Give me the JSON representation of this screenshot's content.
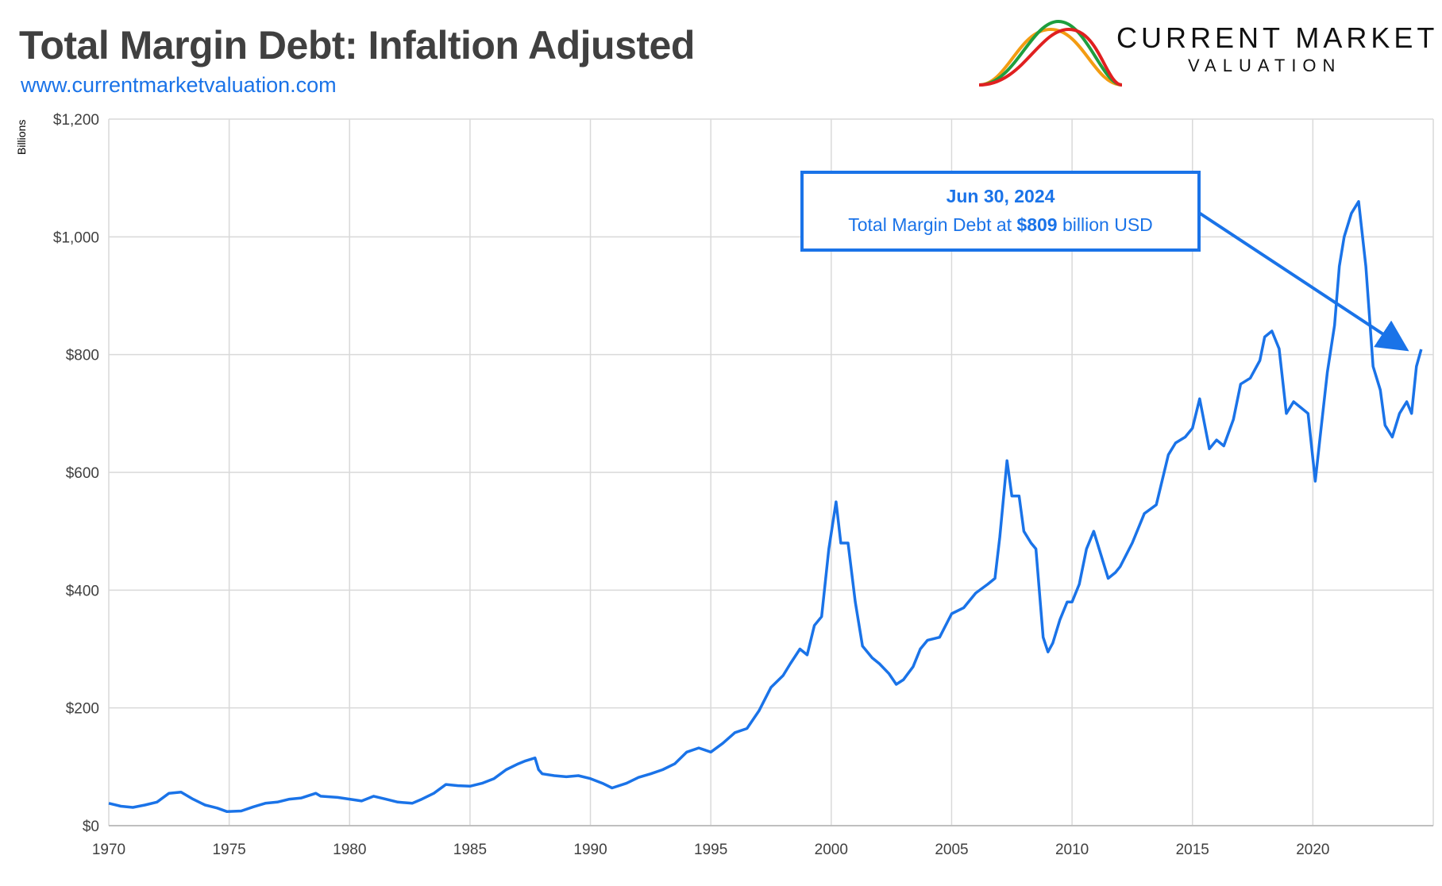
{
  "header": {
    "title": "Total Margin Debt: Infaltion Adjusted",
    "website": "www.currentmarketvaluation.com"
  },
  "logo": {
    "line1": "CURRENT MARKET",
    "line2": "VALUATION",
    "curve_colors": [
      "#f39c12",
      "#1e9e3e",
      "#e02020"
    ]
  },
  "colors": {
    "series": "#1a73e8",
    "grid": "#d9d9d9",
    "title": "#404040",
    "annotation": "#1a73e8"
  },
  "annotation": {
    "date": "Jun 30, 2024",
    "text_before": "Total Margin Debt at ",
    "value": "$809",
    "text_after": " billion USD",
    "point_x": 2024.5,
    "point_y": 809
  },
  "chart_data": {
    "type": "line",
    "title": "Total Margin Debt: Infaltion Adjusted",
    "ylabel": "Billions",
    "xlabel": "",
    "xlim": [
      1970,
      2025
    ],
    "ylim": [
      0,
      1200
    ],
    "grid": true,
    "x_ticks": [
      1970,
      1975,
      1980,
      1985,
      1990,
      1995,
      2000,
      2005,
      2010,
      2015,
      2020
    ],
    "x_tick_labels": [
      "1970",
      "1975",
      "1980",
      "1985",
      "1990",
      "1995",
      "2000",
      "2005",
      "2010",
      "2015",
      "2020"
    ],
    "y_ticks": [
      0,
      200,
      400,
      600,
      800,
      1000,
      1200
    ],
    "y_tick_labels": [
      "$0",
      "$200",
      "$400",
      "$600",
      "$800",
      "$1,000",
      "$1,200"
    ],
    "series": [
      {
        "x": [
          1970.0,
          1970.5,
          1971.0,
          1971.5,
          1972.0,
          1972.5,
          1973.0,
          1973.5,
          1974.0,
          1974.5,
          1974.9,
          1975.5,
          1976.0,
          1976.5,
          1977.0,
          1977.5,
          1978.0,
          1978.6,
          1978.8,
          1979.5,
          1980.0,
          1980.5,
          1981.0,
          1981.5,
          1982.0,
          1982.6,
          1983.0,
          1983.5,
          1984.0,
          1984.5,
          1985.0,
          1985.5,
          1986.0,
          1986.5,
          1987.0,
          1987.3,
          1987.7,
          1987.85,
          1988.0,
          1988.5,
          1989.0,
          1989.5,
          1990.0,
          1990.5,
          1990.9,
          1991.5,
          1992.0,
          1992.5,
          1993.0,
          1993.5,
          1994.0,
          1994.5,
          1995.0,
          1995.5,
          1996.0,
          1996.5,
          1997.0,
          1997.5,
          1998.0,
          1998.3,
          1998.7,
          1999.0,
          1999.3,
          1999.6,
          1999.9,
          2000.2,
          2000.4,
          2000.7,
          2001.0,
          2001.3,
          2001.7,
          2002.0,
          2002.4,
          2002.7,
          2003.0,
          2003.4,
          2003.7,
          2004.0,
          2004.5,
          2005.0,
          2005.5,
          2006.0,
          2006.5,
          2006.8,
          2007.0,
          2007.3,
          2007.5,
          2007.8,
          2008.0,
          2008.3,
          2008.5,
          2008.8,
          2009.0,
          2009.2,
          2009.5,
          2009.8,
          2010.0,
          2010.3,
          2010.6,
          2010.9,
          2011.2,
          2011.5,
          2011.8,
          2012.0,
          2012.5,
          2013.0,
          2013.5,
          2014.0,
          2014.3,
          2014.7,
          2015.0,
          2015.3,
          2015.7,
          2016.0,
          2016.3,
          2016.7,
          2017.0,
          2017.4,
          2017.8,
          2018.0,
          2018.3,
          2018.6,
          2018.9,
          2019.2,
          2019.5,
          2019.8,
          2020.1,
          2020.3,
          2020.6,
          2020.9,
          2021.1,
          2021.3,
          2021.6,
          2021.9,
          2022.2,
          2022.5,
          2022.8,
          2023.0,
          2023.3,
          2023.6,
          2023.9,
          2024.1,
          2024.3,
          2024.5
        ],
        "values": [
          38,
          33,
          31,
          35,
          40,
          55,
          57,
          45,
          35,
          30,
          24,
          25,
          32,
          38,
          40,
          45,
          47,
          55,
          50,
          48,
          45,
          42,
          50,
          45,
          40,
          38,
          45,
          55,
          70,
          68,
          67,
          72,
          80,
          95,
          105,
          110,
          115,
          95,
          88,
          85,
          83,
          85,
          80,
          72,
          64,
          72,
          82,
          88,
          95,
          105,
          125,
          132,
          125,
          140,
          158,
          165,
          195,
          235,
          255,
          275,
          300,
          290,
          340,
          355,
          470,
          550,
          480,
          480,
          380,
          305,
          285,
          275,
          258,
          240,
          248,
          270,
          300,
          315,
          320,
          360,
          370,
          395,
          410,
          420,
          490,
          620,
          560,
          560,
          500,
          480,
          470,
          320,
          295,
          310,
          350,
          380,
          380,
          410,
          470,
          500,
          460,
          420,
          430,
          440,
          480,
          530,
          545,
          630,
          650,
          660,
          675,
          725,
          640,
          655,
          645,
          690,
          750,
          760,
          790,
          830,
          840,
          810,
          700,
          720,
          710,
          700,
          585,
          660,
          770,
          850,
          950,
          1000,
          1040,
          1060,
          950,
          780,
          740,
          680,
          660,
          700,
          720,
          700,
          780,
          809
        ]
      }
    ]
  }
}
